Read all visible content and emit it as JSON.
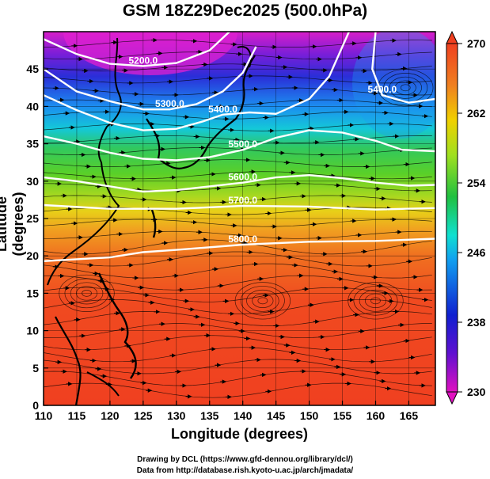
{
  "title": "GSM 18Z29Dec2025 (500.0hPa)",
  "xlabel": "Longitude (degrees)",
  "ylabel": "Latitude  (degrees)",
  "footer_line1": "Drawing by DCL (https://www.gfd-dennou.org/library/dcl/)",
  "footer_line2": "Data from http://database.rish.kyoto-u.ac.jp/arch/jmadata/",
  "chart_data": {
    "type": "heatmap",
    "title": "GSM 18Z29Dec2025 (500.0hPa)",
    "xlabel": "Longitude (degrees)",
    "ylabel": "Latitude  (degrees)",
    "xlim": [
      110,
      169
    ],
    "ylim": [
      0,
      50
    ],
    "x_ticks": [
      "110",
      "115",
      "120",
      "125",
      "130",
      "135",
      "140",
      "145",
      "150",
      "155",
      "160",
      "165"
    ],
    "y_ticks": [
      "0",
      "5",
      "10",
      "15",
      "20",
      "25",
      "30",
      "35",
      "40",
      "45"
    ],
    "colorbar": {
      "range": [
        230,
        270
      ],
      "ticks": [
        "230",
        "238",
        "246",
        "254",
        "262",
        "270"
      ],
      "colors": [
        "#e010c0",
        "#6010d0",
        "#1020d0",
        "#10a0f0",
        "#10e0d0",
        "#20c040",
        "#a0e020",
        "#f0d000",
        "#f08020",
        "#f04020"
      ]
    },
    "contours": [
      {
        "label": "5200.0",
        "points": [
          [
            110,
            49
          ],
          [
            115,
            47
          ],
          [
            120,
            45.7
          ],
          [
            125,
            45.4
          ],
          [
            130,
            45.8
          ],
          [
            135,
            47.5
          ],
          [
            138,
            50
          ]
        ]
      },
      {
        "label": "5300.0",
        "points": [
          [
            110,
            45
          ],
          [
            115,
            42
          ],
          [
            120,
            40.7
          ],
          [
            125,
            39.6
          ],
          [
            129,
            39.6
          ],
          [
            133,
            40.3
          ],
          [
            137,
            42
          ],
          [
            140,
            44.5
          ],
          [
            142,
            48
          ]
        ]
      },
      {
        "label": "5400.0",
        "points": [
          [
            110,
            41.5
          ],
          [
            115,
            39.5
          ],
          [
            120,
            37.8
          ],
          [
            125,
            36.8
          ],
          [
            130,
            37
          ],
          [
            134,
            38
          ],
          [
            137,
            38.9
          ],
          [
            141,
            39.2
          ],
          [
            145,
            39
          ],
          [
            150,
            41
          ],
          [
            153,
            44
          ],
          [
            156,
            50
          ]
        ]
      },
      {
        "label": "5500.0",
        "points": [
          [
            110,
            36
          ],
          [
            115,
            35
          ],
          [
            120,
            33.8
          ],
          [
            125,
            33
          ],
          [
            130,
            32.8
          ],
          [
            135,
            33.2
          ],
          [
            140,
            34.2
          ],
          [
            145,
            35.8
          ],
          [
            150,
            36.8
          ],
          [
            155,
            36.5
          ],
          [
            160,
            35.4
          ],
          [
            164,
            34.2
          ],
          [
            169,
            34
          ]
        ]
      },
      {
        "label": "5600.0",
        "points": [
          [
            110,
            30.5
          ],
          [
            115,
            30
          ],
          [
            120,
            29.3
          ],
          [
            125,
            28.6
          ],
          [
            130,
            28.8
          ],
          [
            135,
            29.3
          ],
          [
            140,
            29.8
          ],
          [
            145,
            30.5
          ],
          [
            150,
            30.8
          ],
          [
            155,
            30.4
          ],
          [
            160,
            29.8
          ],
          [
            165,
            29.4
          ],
          [
            169,
            29.5
          ]
        ]
      },
      {
        "label": "5700.0",
        "points": [
          [
            110,
            26.8
          ],
          [
            120,
            26.3
          ],
          [
            130,
            26.3
          ],
          [
            140,
            26.7
          ],
          [
            150,
            26.6
          ],
          [
            160,
            26.2
          ],
          [
            169,
            26.4
          ]
        ]
      },
      {
        "label": "5800.0",
        "points": [
          [
            110,
            19.3
          ],
          [
            120,
            19.8
          ],
          [
            125,
            20.5
          ],
          [
            130,
            20.8
          ],
          [
            140,
            21.5
          ],
          [
            150,
            21.9
          ],
          [
            160,
            22
          ],
          [
            169,
            22.3
          ]
        ]
      },
      {
        "label": "5400.0",
        "points": [
          [
            160,
            50
          ],
          [
            159.5,
            45
          ],
          [
            161,
            41.5
          ],
          [
            165,
            40.5
          ],
          [
            169,
            41
          ]
        ]
      }
    ],
    "color_field_bands": [
      {
        "lat": 50,
        "value": 232
      },
      {
        "lat": 46,
        "value": 236
      },
      {
        "lat": 42,
        "value": 242
      },
      {
        "lat": 38,
        "value": 250
      },
      {
        "lat": 33,
        "value": 256
      },
      {
        "lat": 28,
        "value": 260
      },
      {
        "lat": 22,
        "value": 264
      },
      {
        "lat": 10,
        "value": 268
      },
      {
        "lat": 0,
        "value": 269
      }
    ]
  }
}
